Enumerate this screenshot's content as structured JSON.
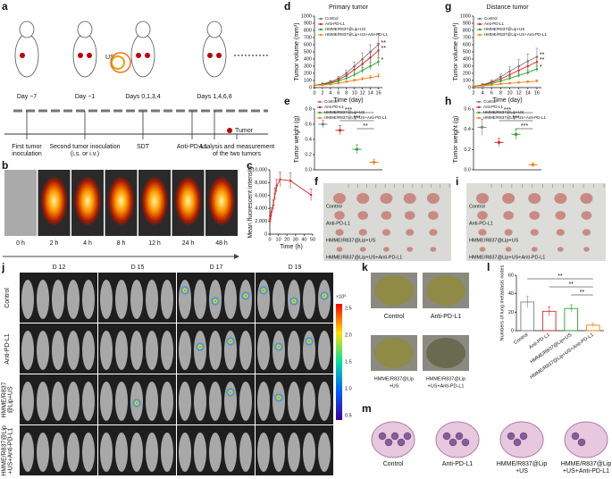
{
  "chart_data": [
    {
      "type": "line",
      "x_label": "Time (h)",
      "y_label": "Mean fluorescent intensity",
      "x": [
        0,
        0.5,
        1,
        2,
        4,
        6,
        8,
        12,
        24,
        48
      ],
      "values": [
        2000,
        2400,
        2800,
        3500,
        4500,
        6300,
        7500,
        8500,
        8300,
        6100
      ],
      "errors": [
        300,
        400,
        500,
        600,
        800,
        900,
        1000,
        1100,
        1200,
        900
      ],
      "color": "#d62728",
      "xlim": [
        0,
        50
      ],
      "xticks": [
        0,
        10,
        20,
        30,
        40,
        50
      ],
      "ylim": [
        0,
        10000
      ],
      "yticks": [
        0,
        {
          "value": 2000,
          "label": "2,000"
        },
        {
          "value": 4000,
          "label": "4,000"
        },
        {
          "value": 6000,
          "label": "6,000"
        },
        {
          "value": 8000,
          "label": "8,000"
        },
        {
          "value": 10000,
          "label": "10,000"
        }
      ]
    },
    {
      "type": "line",
      "title": "Primary tumor",
      "x_label": "Time (day)",
      "y_label": "Tumor volume (mm³)",
      "x": [
        0,
        2,
        4,
        6,
        8,
        10,
        12,
        14,
        16
      ],
      "series": [
        {
          "name": "Control",
          "color": "#7f7f7f",
          "values": [
            30,
            50,
            80,
            130,
            200,
            300,
            400,
            500,
            600
          ],
          "errors": [
            10,
            15,
            20,
            30,
            40,
            60,
            80,
            100,
            150
          ]
        },
        {
          "name": "Anti-PD-L1",
          "color": "#d62728",
          "values": [
            30,
            45,
            70,
            110,
            170,
            250,
            330,
            420,
            520
          ],
          "errors": [
            10,
            12,
            18,
            25,
            35,
            45,
            60,
            80,
            100
          ]
        },
        {
          "name": "HMME/R837@Lip+US",
          "color": "#2ca02c",
          "values": [
            30,
            40,
            60,
            90,
            130,
            180,
            240,
            300,
            360
          ],
          "errors": [
            8,
            10,
            15,
            20,
            25,
            30,
            40,
            50,
            60
          ]
        },
        {
          "name": "HMME/R837@Lip+US+Anti-PD-L1",
          "color": "#ff7f0e",
          "values": [
            30,
            35,
            45,
            60,
            80,
            100,
            120,
            140,
            160
          ],
          "errors": [
            8,
            8,
            10,
            12,
            15,
            18,
            20,
            25,
            30
          ]
        }
      ],
      "xlim": [
        0,
        17
      ],
      "xticks": [
        0,
        2,
        4,
        6,
        8,
        10,
        12,
        14,
        16
      ],
      "ylim": [
        0,
        1000
      ],
      "yticks": [
        0,
        100,
        200,
        300,
        400,
        500,
        600,
        700,
        800,
        900,
        1000
      ],
      "annotations": [
        "**",
        "**",
        "*"
      ],
      "legend": "upper left"
    },
    {
      "type": "line",
      "title": "Distance tumor",
      "x_label": "Time (day)",
      "y_label": "Tumor volume (mm³)",
      "x": [
        2,
        4,
        6,
        8,
        10,
        12,
        14,
        16
      ],
      "series": [
        {
          "name": "Control",
          "color": "#7f7f7f",
          "values": [
            20,
            40,
            80,
            150,
            230,
            300,
            370,
            430
          ],
          "errors": [
            8,
            15,
            25,
            40,
            60,
            90,
            100,
            120
          ]
        },
        {
          "name": "Anti-PD-L1",
          "color": "#d62728",
          "values": [
            20,
            35,
            70,
            120,
            180,
            240,
            300,
            360
          ],
          "errors": [
            8,
            12,
            20,
            30,
            40,
            50,
            60,
            70
          ]
        },
        {
          "name": "HMME/R837@Lip+US",
          "color": "#2ca02c",
          "values": [
            20,
            30,
            55,
            90,
            130,
            170,
            210,
            260
          ],
          "errors": [
            6,
            10,
            15,
            20,
            25,
            30,
            35,
            40
          ]
        },
        {
          "name": "HMME/R837@Lip+US+Anti-PD-L1",
          "color": "#ff7f0e",
          "values": [
            20,
            25,
            35,
            50,
            60,
            70,
            80,
            90
          ],
          "errors": [
            5,
            6,
            8,
            10,
            12,
            14,
            15,
            18
          ]
        }
      ],
      "xlim": [
        2,
        17
      ],
      "xticks": [
        2,
        4,
        6,
        8,
        10,
        12,
        14,
        16
      ],
      "ylim": [
        0,
        1000
      ],
      "yticks": [
        0,
        100,
        200,
        300,
        400,
        500,
        600,
        700,
        800,
        900,
        1000
      ],
      "annotations": [
        "**",
        "**",
        "*"
      ],
      "legend": "upper left"
    },
    {
      "type": "dot",
      "y_label": "Tumor weight (g)",
      "series": [
        {
          "name": "Control",
          "color": "#7f7f7f",
          "values": [
            0.6
          ],
          "errors": [
            0.05
          ]
        },
        {
          "name": "Anti-PD-L1",
          "color": "#d62728",
          "values": [
            0.52
          ],
          "errors": [
            0.06
          ]
        },
        {
          "name": "HMME/R837@Lip+US",
          "color": "#2ca02c",
          "values": [
            0.27
          ],
          "errors": [
            0.06
          ]
        },
        {
          "name": "HMME/R837@Lip+US+Anti-PD-L1",
          "color": "#ff7f0e",
          "values": [
            0.1
          ],
          "errors": [
            0.04
          ]
        }
      ],
      "ylim": [
        0,
        0.8
      ],
      "yticks": [
        {
          "value": 0,
          "label": "0.0"
        },
        0.2,
        0.4,
        0.6,
        0.8
      ],
      "annotations": [
        "***",
        "***",
        "**"
      ],
      "legend": "upper left"
    },
    {
      "type": "dot",
      "y_label": "Tumor weight (g)",
      "series": [
        {
          "name": "Control",
          "color": "#7f7f7f",
          "values": [
            0.42
          ],
          "errors": [
            0.08
          ]
        },
        {
          "name": "Anti-PD-L1",
          "color": "#d62728",
          "values": [
            0.27
          ],
          "errors": [
            0.04
          ]
        },
        {
          "name": "HMME/R837@Lip+US",
          "color": "#2ca02c",
          "values": [
            0.35
          ],
          "errors": [
            0.05
          ]
        },
        {
          "name": "HMME/R837@Lip+US+Anti-PD-L1",
          "color": "#ff7f0e",
          "values": [
            0.05
          ],
          "errors": [
            0.02
          ]
        }
      ],
      "ylim": [
        0,
        0.6
      ],
      "yticks": [
        {
          "value": 0,
          "label": "0.0"
        },
        0.2,
        0.4,
        0.6
      ],
      "annotations": [
        "***",
        "***",
        "***"
      ],
      "legend": "upper left"
    },
    {
      "type": "bar",
      "y_label": "Numbers of lung metastasis nodes",
      "categories": [
        "Control",
        "Anti-PD-L1",
        "HMME/R837@Lip+US",
        "HMME/R837@Lip+US+Anti-PD-L1"
      ],
      "values": [
        31,
        21,
        24,
        6
      ],
      "errors": [
        6,
        5,
        4,
        2
      ],
      "colors": [
        "#7f7f7f",
        "#d62728",
        "#2ca02c",
        "#ff7f0e"
      ],
      "ylim": [
        0,
        60
      ],
      "yticks": [
        0,
        20,
        40,
        60
      ],
      "annotations": [
        "**",
        "**",
        "**"
      ]
    }
  ],
  "figure": {
    "letters": [
      "a",
      "b",
      "c",
      "d",
      "e",
      "f",
      "g",
      "h",
      "i",
      "j",
      "k",
      "l",
      "m"
    ],
    "timeline": {
      "days": [
        "Day −7",
        "Day −1",
        "Days 0,1,3,4",
        "Days 1,4,6,8"
      ],
      "us": "US",
      "tumor": "Tumor",
      "steps": [
        [
          "First tumor",
          "inoculation"
        ],
        [
          "Second tumor inoculation",
          "(i.s. or i.v.)"
        ],
        [
          "SDT"
        ],
        [
          "Anti-PD-L1"
        ],
        [
          "Analysis and measurement",
          "of the two tumors"
        ]
      ]
    },
    "imaging_times": [
      "0 h",
      "2 h",
      "4 h",
      "8 h",
      "12 h",
      "24 h",
      "48 h"
    ],
    "tumor_groups": [
      "Control",
      "Anti-PD-L1",
      "HMME/R837@Lip+US",
      "HMME/R837@Lip+US+Anti-PD-L1"
    ],
    "bioluminescence": {
      "days": [
        "D 12",
        "D 15",
        "D 17",
        "D 19"
      ],
      "rows": [
        [
          "Control"
        ],
        [
          "Anti-PD-L1"
        ],
        [
          "HMME/R837",
          "@Lip+US"
        ],
        [
          "HMME/R837@Lip",
          "+US+Anti-PD-L1"
        ]
      ],
      "scale_unit": "×10⁶",
      "scale_ticks": [
        "2.5",
        "2.0",
        "1.5",
        "1.0",
        "0.5"
      ]
    },
    "lung_groups": [
      [
        "Control"
      ],
      [
        "Anti-PD-L1"
      ],
      [
        "HMME/R837@Lip",
        "+US"
      ],
      [
        "HMME/R837@Lip",
        "+US+Anti-PD-L1"
      ]
    ]
  }
}
